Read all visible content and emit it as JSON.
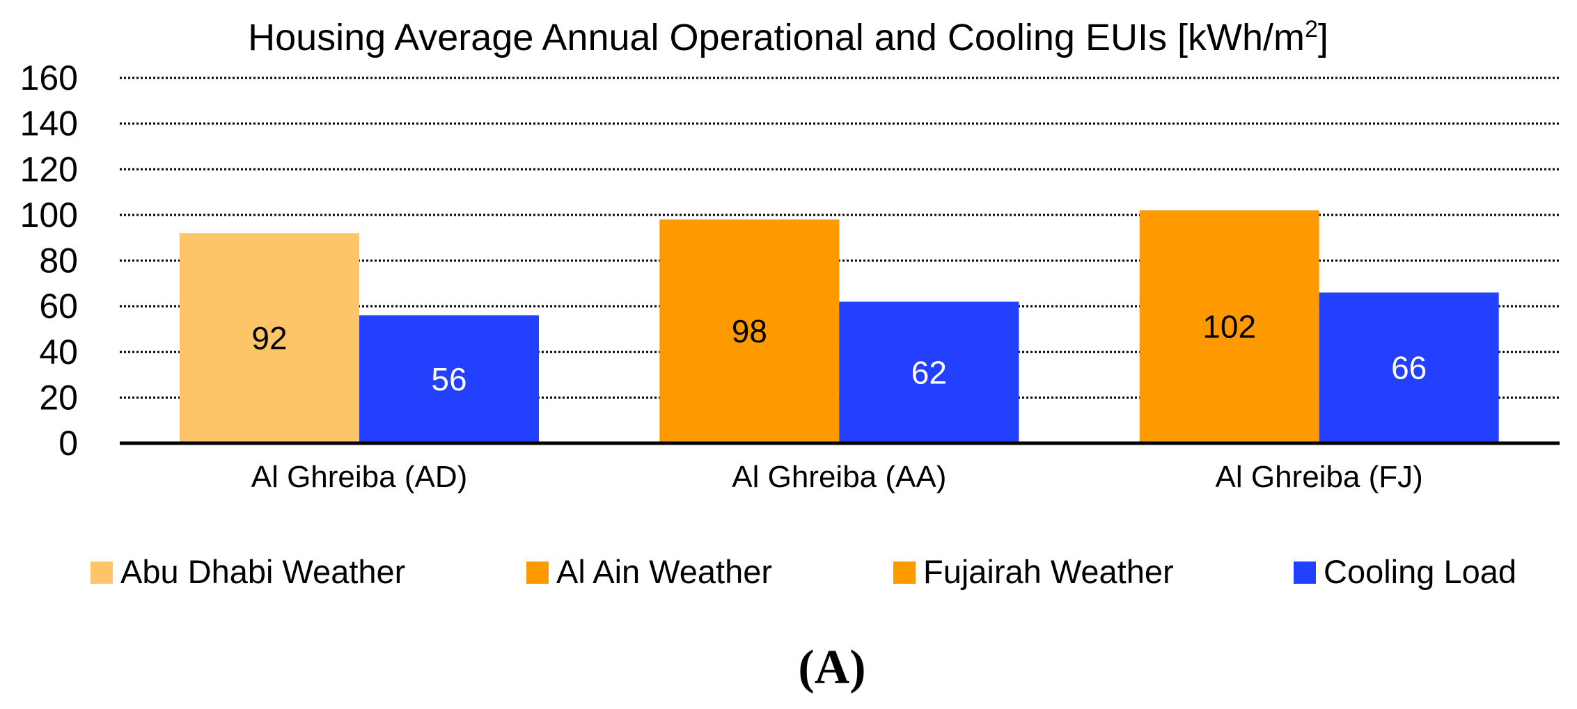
{
  "chart_data": {
    "type": "bar",
    "title": "Housing Average Annual Operational and Cooling EUIs [kWh/m",
    "title_superscript": "2",
    "title_end": "]",
    "categories": [
      "Al Ghreiba (AD)",
      "Al Ghreiba (AA)",
      "Al Ghreiba (FJ)"
    ],
    "operational_values": [
      92,
      98,
      102
    ],
    "operational_colors": [
      "#FDC468",
      "#FF9900",
      "#FF9900"
    ],
    "series": [
      {
        "name": "Abu Dhabi Weather",
        "color": "#FDC468"
      },
      {
        "name": "Al Ain Weather",
        "color": "#FF9900"
      },
      {
        "name": "Fujairah Weather",
        "color": "#FF9900"
      },
      {
        "name": "Cooling Load",
        "color": "#2340FF",
        "values": [
          56,
          62,
          66
        ]
      }
    ],
    "ylim": [
      0,
      160
    ],
    "yticks": [
      "0",
      "20",
      "40",
      "60",
      "80",
      "100",
      "120",
      "140",
      "160"
    ],
    "ytick_values": [
      0,
      20,
      40,
      60,
      80,
      100,
      120,
      140,
      160
    ],
    "grid": true,
    "legend_position": "bottom",
    "xlabel": "",
    "ylabel": ""
  },
  "panel_label": "(A)"
}
